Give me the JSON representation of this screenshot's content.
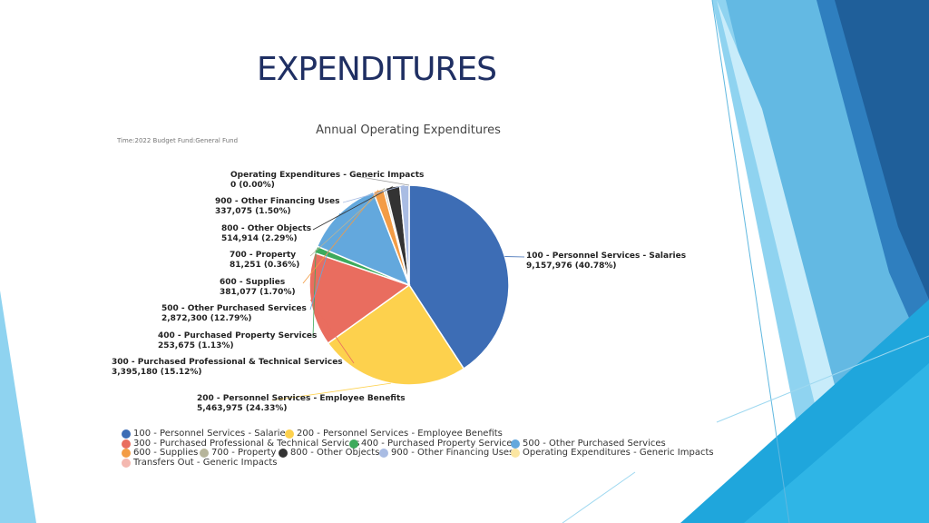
{
  "slide": {
    "title": "EXPENDITURES"
  },
  "colors": {
    "deep_blue": "#1f5f9a",
    "mid_blue": "#2f8fc9",
    "light_blue": "#8fd3f0",
    "pale_blue": "#c8ecfa",
    "cyan": "#1fa6dc"
  },
  "chart_data": {
    "type": "pie",
    "title": "Annual Operating Expenditures",
    "subtitle": "Time:2022 Budget Fund:General Fund",
    "slices": [
      {
        "name": "100 - Personnel Services - Salaries",
        "value": 9157976,
        "value_label": "9,157,976 (40.78%)",
        "percent": 40.78,
        "color": "#3d6db5"
      },
      {
        "name": "200 - Personnel Services - Employee Benefits",
        "value": 5463975,
        "value_label": "5,463,975 (24.33%)",
        "percent": 24.33,
        "color": "#fdd14d"
      },
      {
        "name": "300 - Purchased Professional & Technical Services",
        "value": 3395180,
        "value_label": "3,395,180 (15.12%)",
        "percent": 15.12,
        "color": "#e96d5f"
      },
      {
        "name": "400 - Purchased Property Services",
        "value": 253675,
        "value_label": "253,675 (1.13%)",
        "percent": 1.13,
        "color": "#3daa5c"
      },
      {
        "name": "500 - Other Purchased Services",
        "value": 2872300,
        "value_label": "2,872,300 (12.79%)",
        "percent": 12.79,
        "color": "#63a8dd"
      },
      {
        "name": "600 - Supplies",
        "value": 381077,
        "value_label": "381,077 (1.70%)",
        "percent": 1.7,
        "color": "#f39c45"
      },
      {
        "name": "700 - Property",
        "value": 81251,
        "value_label": "81,251 (0.36%)",
        "percent": 0.36,
        "color": "#b6b49a"
      },
      {
        "name": "800 - Other Objects",
        "value": 514914,
        "value_label": "514,914 (2.29%)",
        "percent": 2.29,
        "color": "#333333"
      },
      {
        "name": "900 - Other Financing Uses",
        "value": 337075,
        "value_label": "337,075 (1.50%)",
        "percent": 1.5,
        "color": "#a9bce3"
      },
      {
        "name": "Operating Expenditures - Generic Impacts",
        "value": 0,
        "value_label": "0 (0.00%)",
        "percent": 0.0,
        "color": "#fbe6a2"
      }
    ],
    "legend": [
      {
        "label": "100 - Personnel Services - Salaries",
        "color": "#3d6db5"
      },
      {
        "label": "200 - Personnel Services - Employee Benefits",
        "color": "#fdd14d"
      },
      {
        "label": "300 - Purchased Professional & Technical Services",
        "color": "#e96d5f"
      },
      {
        "label": "400 - Purchased Property Services",
        "color": "#3daa5c"
      },
      {
        "label": "500 - Other Purchased Services",
        "color": "#63a8dd"
      },
      {
        "label": "600 - Supplies",
        "color": "#f39c45"
      },
      {
        "label": "700 - Property",
        "color": "#b6b49a"
      },
      {
        "label": "800 - Other Objects",
        "color": "#333333"
      },
      {
        "label": "900 - Other Financing Uses",
        "color": "#a9bce3"
      },
      {
        "label": "Operating Expenditures - Generic Impacts",
        "color": "#fbe6a2"
      },
      {
        "label": "Transfers Out - Generic Impacts",
        "color": "#f4b8b0"
      }
    ]
  }
}
